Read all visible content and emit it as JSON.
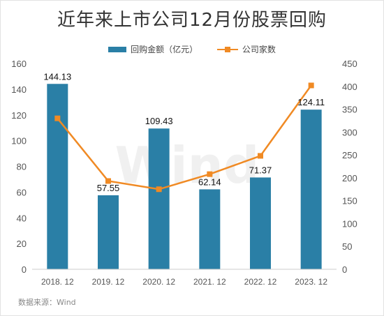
{
  "title": "近年来上市公司12月份股票回购",
  "source": "数据来源：Wind",
  "watermark": "Wind",
  "colors": {
    "bar": "#2a7fa6",
    "line": "#f08a24",
    "axis": "#555555",
    "grid": "#eeeeee"
  },
  "chart_data": {
    "type": "bar",
    "categories": [
      "2018. 12",
      "2019. 12",
      "2020. 12",
      "2021. 12",
      "2022. 12",
      "2023. 12"
    ],
    "series": [
      {
        "name": "回购金额（亿元）",
        "type": "bar",
        "axis": "left",
        "values": [
          144.13,
          57.55,
          109.43,
          62.14,
          71.37,
          124.11
        ],
        "labels": [
          "144.13",
          "57.55",
          "109.43",
          "62.14",
          "71.37",
          "124.11"
        ]
      },
      {
        "name": "公司家数",
        "type": "line",
        "axis": "right",
        "values": [
          330,
          193,
          175,
          208,
          248,
          402
        ]
      }
    ],
    "y_left": {
      "min": 0,
      "max": 160,
      "ticks": [
        0,
        20,
        40,
        60,
        80,
        100,
        120,
        140,
        160
      ]
    },
    "y_right": {
      "min": 0,
      "max": 450,
      "ticks": [
        0,
        50,
        100,
        150,
        200,
        250,
        300,
        350,
        400,
        450
      ]
    },
    "legend_position": "top-center",
    "grid": false
  }
}
